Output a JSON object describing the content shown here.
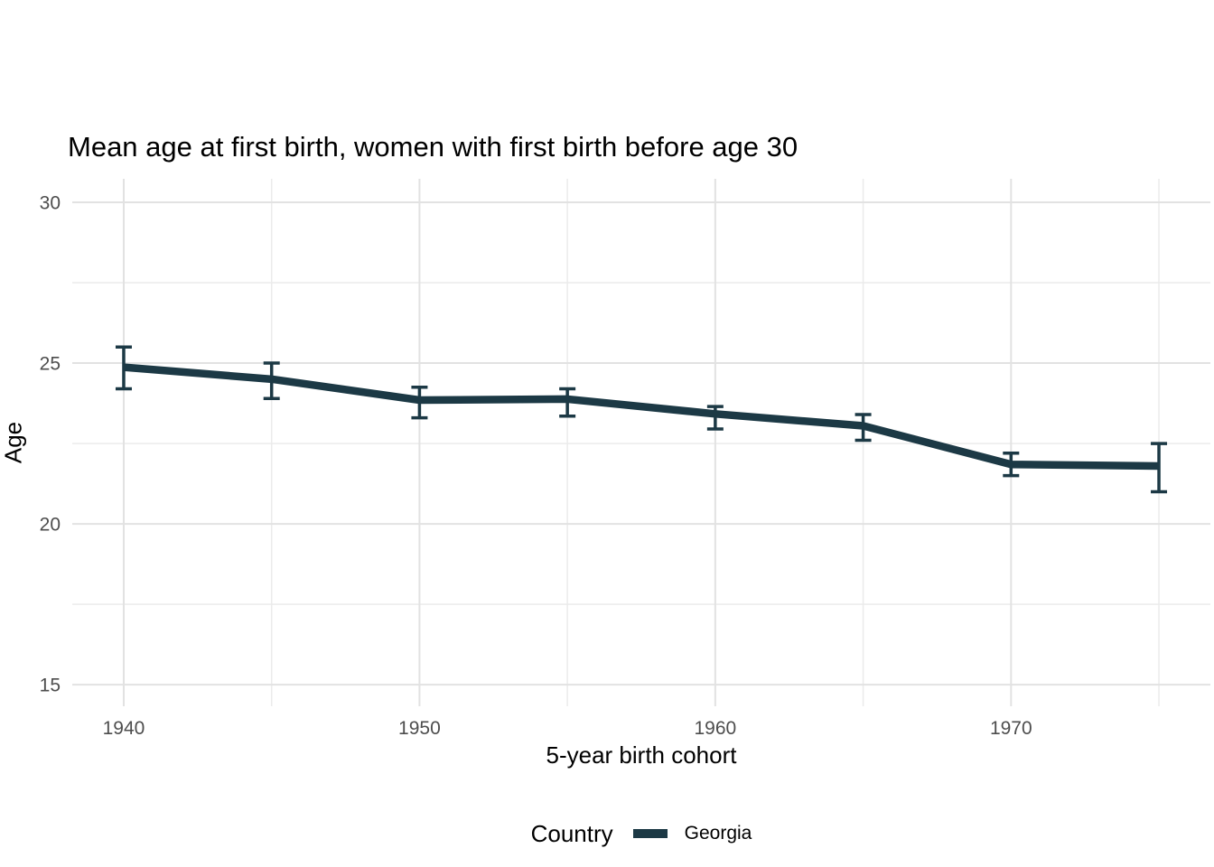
{
  "title": "Mean age at first birth, women with first birth before age 30",
  "axes": {
    "x": {
      "title": "5-year birth cohort",
      "tick_values": [
        1940,
        1950,
        1960,
        1970
      ],
      "tick_labels": [
        "1940",
        "1950",
        "1960",
        "1970"
      ]
    },
    "y": {
      "title": "Age",
      "tick_values": [
        15,
        20,
        25,
        30
      ],
      "tick_labels": [
        "15",
        "20",
        "25",
        "30"
      ]
    }
  },
  "legend": {
    "title": "Country",
    "series_label": "Georgia"
  },
  "colors": {
    "series": "#1c3945",
    "grid_major": "#e2e2e2",
    "grid_minor": "#ebebeb",
    "tick_text": "#4d4d4d",
    "title_text": "#000000",
    "background": "#ffffff"
  },
  "chart_data": {
    "type": "line",
    "title": "Mean age at first birth, women with first birth before age 30",
    "xlabel": "5-year birth cohort",
    "ylabel": "Age",
    "x": [
      1940,
      1945,
      1950,
      1955,
      1960,
      1965,
      1970,
      1975
    ],
    "series": [
      {
        "name": "Georgia",
        "values": [
          24.87,
          24.5,
          23.85,
          23.88,
          23.42,
          23.05,
          21.85,
          21.8
        ],
        "ci_low": [
          24.2,
          23.9,
          23.3,
          23.35,
          22.95,
          22.6,
          21.5,
          21.0
        ],
        "ci_high": [
          25.5,
          25.0,
          24.25,
          24.2,
          23.65,
          23.4,
          22.2,
          22.5
        ]
      }
    ],
    "error_bars": true,
    "xlim": [
      1938.26,
      1976.74
    ],
    "ylim": [
      14.33,
      30.73
    ],
    "x_major_gridlines": [
      1940,
      1950,
      1960,
      1970
    ],
    "x_minor_gridlines": [
      1945,
      1955,
      1965,
      1975
    ],
    "y_major_gridlines": [
      15,
      20,
      25,
      30
    ],
    "y_minor_gridlines": [
      17.5,
      22.5,
      27.5
    ],
    "grid": true,
    "legend_position": "bottom"
  }
}
